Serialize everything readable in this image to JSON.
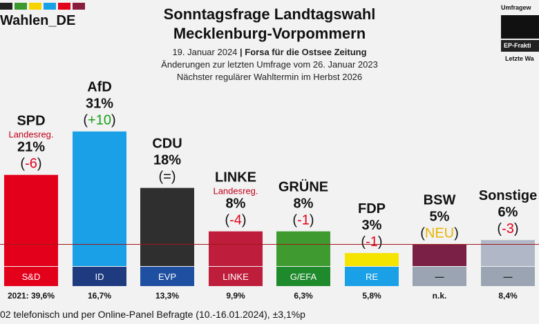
{
  "header": {
    "brand": "Wahlen_DE",
    "brand_colors": [
      "#222222",
      "#3a9a2e",
      "#f5d400",
      "#1aa0e6",
      "#e3001b",
      "#8a1c3c"
    ],
    "title_line1": "Sonntagsfrage Landtagswahl",
    "title_line2": "Mecklenburg-Vorpommern",
    "date": "19. Januar 2024",
    "separator": "|",
    "institute": "Forsa für die Ostsee Zeitung",
    "changes_note": "Änderungen zur letzten Umfrage vom 26. Januar 2023",
    "next_election": "Nächster regulärer Wahltermin im Herbst 2026"
  },
  "legend": {
    "title": "Umfragew",
    "ep_label": "EP-Frakti",
    "last_label": "Letzte Wa"
  },
  "footer": {
    "text": "02 telefonisch und per Online-Panel Befragte (10.-16.01.2024), ±3,1%p"
  },
  "chart_data": {
    "type": "bar",
    "title": "Sonntagsfrage Landtagswahl Mecklenburg-Vorpommern",
    "categories": [
      "SPD",
      "AfD",
      "CDU",
      "LINKE",
      "GRÜNE",
      "FDP",
      "BSW",
      "Sonstige"
    ],
    "values": [
      21,
      31,
      18,
      8,
      8,
      3,
      5,
      6
    ],
    "value_labels": [
      "21%",
      "31%",
      "18%",
      "8%",
      "8%",
      "3%",
      "5%",
      "6%"
    ],
    "changes": [
      "-6",
      "+10",
      "=",
      "-4",
      "-1",
      "-1",
      "NEU",
      "-3"
    ],
    "change_colors": [
      "#e3001b",
      "#19a019",
      "#111111",
      "#e3001b",
      "#e3001b",
      "#e3001b",
      "#e8b400",
      "#e3001b"
    ],
    "notes": [
      "Landesreg.",
      "",
      "",
      "Landesreg.",
      "",
      "",
      "",
      ""
    ],
    "bar_colors": [
      "#e3001b",
      "#1aa0e6",
      "#2f2f2f",
      "#be1e3c",
      "#3f9b2f",
      "#f5e300",
      "#7a1f45",
      "#b0b8c8"
    ],
    "ep_groups": [
      "S&D",
      "ID",
      "EVP",
      "LINKE",
      "G/EFA",
      "RE",
      "—",
      "—"
    ],
    "ep_colors": [
      "#e3001b",
      "#1f3b80",
      "#1e4fa0",
      "#be1e3c",
      "#1f8a2c",
      "#1aa0e6",
      "#9aa4b2",
      "#9aa4b2"
    ],
    "last_election_prefix": "2021:",
    "last_election": [
      "39,6%",
      "16,7%",
      "13,3%",
      "9,9%",
      "6,3%",
      "5,8%",
      "n.k.",
      "8,4%"
    ],
    "threshold": 5,
    "ylim": [
      0,
      31
    ]
  }
}
